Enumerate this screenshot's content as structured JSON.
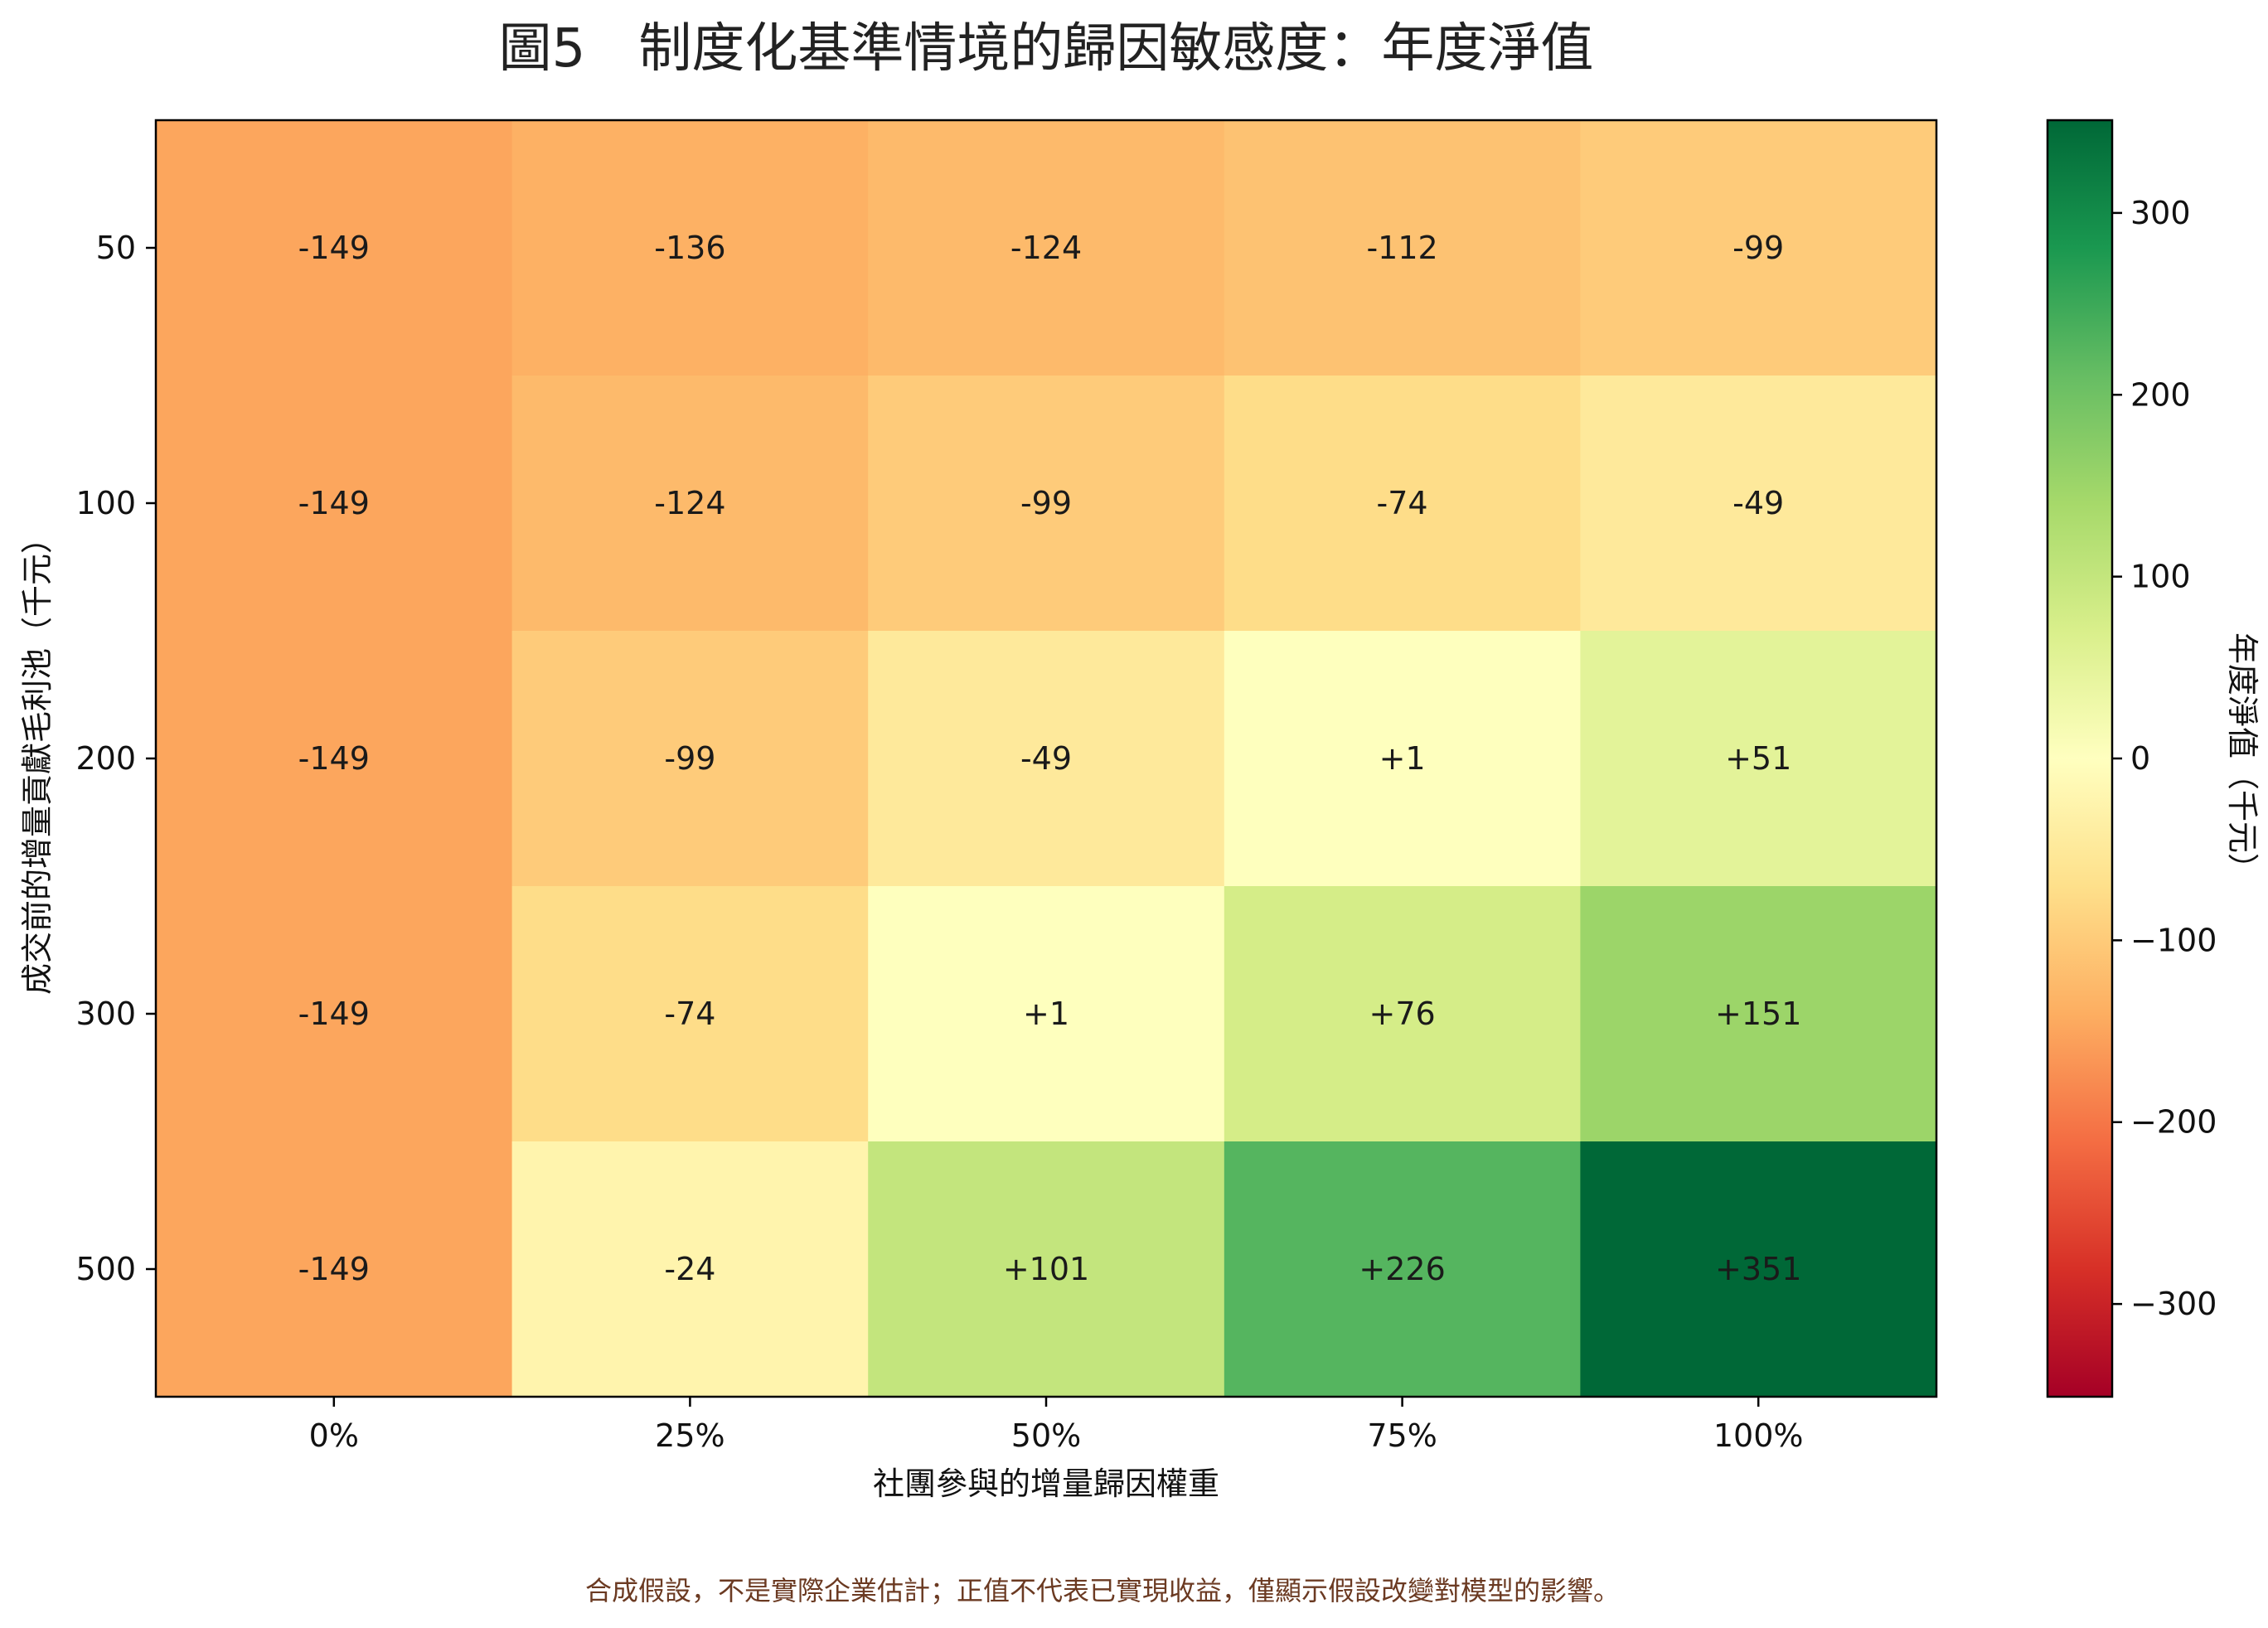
{
  "chart_data": {
    "type": "heatmap",
    "title": "圖5　制度化基準情境的歸因敏感度：年度淨值",
    "xlabel": "社團參與的增量歸因權重",
    "ylabel": "成交前的增量貢獻毛利池（千元）",
    "x_categories": [
      "0%",
      "25%",
      "50%",
      "75%",
      "100%"
    ],
    "y_categories": [
      "50",
      "100",
      "200",
      "300",
      "500"
    ],
    "values": [
      [
        -149,
        -136,
        -124,
        -112,
        -99
      ],
      [
        -149,
        -124,
        -99,
        -74,
        -49
      ],
      [
        -149,
        -99,
        -49,
        1,
        51
      ],
      [
        -149,
        -74,
        1,
        76,
        151
      ],
      [
        -149,
        -24,
        101,
        226,
        351
      ]
    ],
    "value_labels": [
      [
        "-149",
        "-136",
        "-124",
        "-112",
        "-99"
      ],
      [
        "-149",
        "-124",
        "-99",
        "-74",
        "-49"
      ],
      [
        "-149",
        "-99",
        "-49",
        "+1",
        "+51"
      ],
      [
        "-149",
        "-74",
        "+1",
        "+76",
        "+151"
      ],
      [
        "-149",
        "-24",
        "+101",
        "+226",
        "+351"
      ]
    ],
    "colorbar": {
      "label": "年度淨值（千元）",
      "range": [
        -351,
        351
      ],
      "ticks": [
        300,
        200,
        100,
        0,
        -100,
        -200,
        -300
      ],
      "tick_labels": [
        "300",
        "200",
        "100",
        "0",
        "−100",
        "−200",
        "−300"
      ],
      "colormap": "RdYlGn"
    }
  },
  "footnote": "合成假設，不是實際企業估計；正值不代表已實現收益，僅顯示假設改變對模型的影響。"
}
